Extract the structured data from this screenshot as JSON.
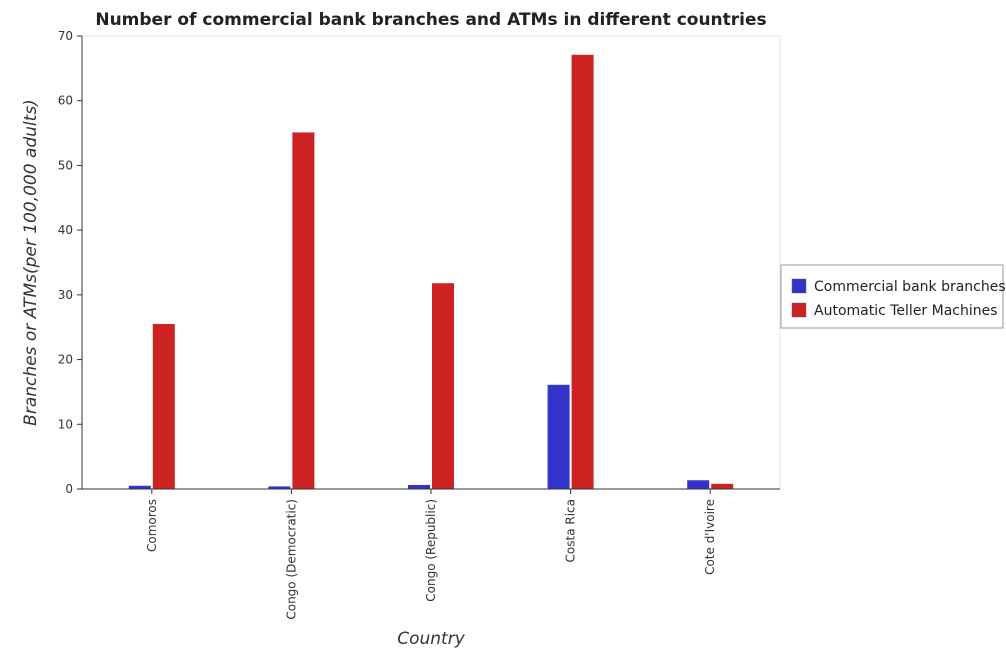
{
  "chart_data": {
    "type": "bar",
    "title": "Number of commercial bank branches and ATMs in different countries",
    "xlabel": "Country",
    "ylabel": "Branches or ATMs(per 100,000 adults)",
    "categories": [
      "Comoros",
      "Congo (Democratic)",
      "Congo (Republic)",
      "Costa Rica",
      "Cote d'Ivoire"
    ],
    "ylim": [
      0,
      70
    ],
    "yticks": [
      0,
      10,
      20,
      30,
      40,
      50,
      60,
      70
    ],
    "grid": false,
    "legend_position": "right",
    "series": [
      {
        "name": "Commercial bank branches",
        "color": "#3333cc",
        "values": [
          0.5,
          0.4,
          0.62,
          16.1,
          1.35
        ]
      },
      {
        "name": "Automatic Teller Machines",
        "color": "#cc2222",
        "values": [
          25.5,
          55.1,
          31.8,
          67.1,
          0.8
        ]
      }
    ]
  }
}
